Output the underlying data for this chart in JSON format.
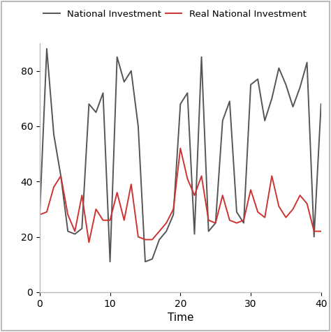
{
  "nominal_x": [
    0,
    1,
    2,
    3,
    4,
    5,
    6,
    7,
    8,
    9,
    10,
    11,
    12,
    13,
    14,
    15,
    16,
    17,
    18,
    19,
    20,
    21,
    22,
    23,
    24,
    25,
    26,
    27,
    28,
    29,
    30,
    31,
    32,
    33,
    34,
    35,
    36,
    37,
    38,
    39,
    40
  ],
  "nominal_y": [
    28,
    88,
    57,
    42,
    22,
    21,
    23,
    68,
    65,
    72,
    11,
    85,
    76,
    80,
    60,
    11,
    12,
    19,
    22,
    28,
    68,
    72,
    21,
    85,
    22,
    25,
    62,
    69,
    29,
    25,
    75,
    77,
    62,
    70,
    81,
    75,
    67,
    74,
    83,
    20,
    68
  ],
  "real_x": [
    0,
    1,
    2,
    3,
    4,
    5,
    6,
    7,
    8,
    9,
    10,
    11,
    12,
    13,
    14,
    15,
    16,
    17,
    18,
    19,
    20,
    21,
    22,
    23,
    24,
    25,
    26,
    27,
    28,
    29,
    30,
    31,
    32,
    33,
    34,
    35,
    36,
    37,
    38,
    39,
    40
  ],
  "real_y": [
    28,
    29,
    38,
    42,
    28,
    22,
    35,
    18,
    30,
    26,
    26,
    36,
    26,
    39,
    20,
    19,
    19,
    22,
    25,
    30,
    52,
    41,
    35,
    42,
    26,
    25,
    35,
    26,
    25,
    26,
    37,
    29,
    27,
    42,
    31,
    27,
    30,
    35,
    32,
    22,
    22
  ],
  "nominal_color": "#555555",
  "real_color": "#cc3333",
  "xlabel": "Time",
  "legend_nominal": "National Investment",
  "legend_real": "Real National Investment",
  "xlim": [
    0,
    40
  ],
  "ylim": [
    0,
    90
  ],
  "yticks": [
    0,
    20,
    40,
    60,
    80
  ],
  "xticks": [
    0,
    10,
    20,
    30,
    40
  ],
  "linewidth": 1.4,
  "background_color": "#ffffff",
  "border_color": "#bbbbbb",
  "outer_border_color": "#bbbbbb"
}
